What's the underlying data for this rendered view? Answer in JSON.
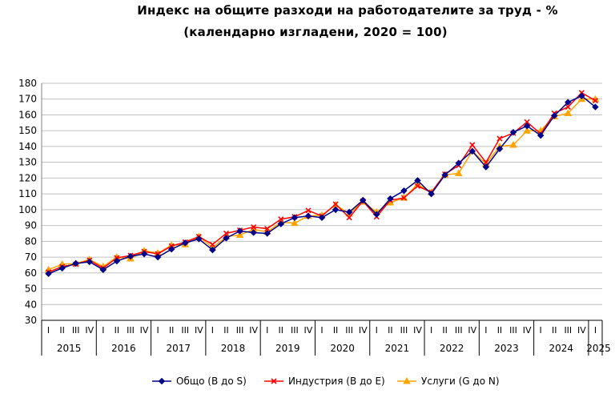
{
  "chart_data": {
    "type": "line",
    "title": "Индекс на общите разходи на работодателите за труд - %",
    "subtitle": "(календарно изгладени, 2020 = 100)",
    "xlabel": "",
    "ylabel": "",
    "ylim": [
      30,
      180
    ],
    "yticks": [
      30,
      40,
      50,
      60,
      70,
      80,
      90,
      100,
      110,
      120,
      130,
      140,
      150,
      160,
      170,
      180
    ],
    "grid": true,
    "legend_position": "bottom",
    "quarter_labels": [
      "I",
      "II",
      "III",
      "IV"
    ],
    "years": [
      "2015",
      "2016",
      "2017",
      "2018",
      "2019",
      "2020",
      "2021",
      "2022",
      "2023",
      "2024",
      "2025"
    ],
    "categories": [
      "2015 I",
      "2015 II",
      "2015 III",
      "2015 IV",
      "2016 I",
      "2016 II",
      "2016 III",
      "2016 IV",
      "2017 I",
      "2017 II",
      "2017 III",
      "2017 IV",
      "2018 I",
      "2018 II",
      "2018 III",
      "2018 IV",
      "2019 I",
      "2019 II",
      "2019 III",
      "2019 IV",
      "2020 I",
      "2020 II",
      "2020 III",
      "2020 IV",
      "2021 I",
      "2021 II",
      "2021 III",
      "2021 IV",
      "2022 I",
      "2022 II",
      "2022 III",
      "2022 IV",
      "2023 I",
      "2023 II",
      "2023 III",
      "2023 IV",
      "2024 I",
      "2024 II",
      "2024 III",
      "2024 IV",
      "2025 I"
    ],
    "series": [
      {
        "name": "Общо (B до S)",
        "color": "#00008B",
        "marker": "diamond",
        "values": [
          59.5,
          63,
          66,
          67,
          62,
          67.5,
          70.5,
          72,
          70,
          75,
          79,
          81.5,
          74.5,
          82,
          86.5,
          85.5,
          85,
          91,
          95,
          96,
          95,
          100,
          98.5,
          106,
          97,
          107,
          112,
          118.5,
          110,
          122,
          129.5,
          137,
          127,
          138.5,
          149,
          153,
          147,
          159.5,
          168,
          172,
          165
        ]
      },
      {
        "name": "Индустрия (B до E)",
        "color": "#FF0000",
        "marker": "x",
        "values": [
          60.5,
          64,
          65.5,
          68,
          63,
          69.5,
          71,
          73.5,
          72,
          77,
          79.5,
          83,
          78,
          85,
          87,
          89,
          88,
          94,
          95.5,
          99.5,
          96,
          103.5,
          95,
          105.5,
          95.5,
          106,
          107.5,
          115,
          111,
          122.5,
          128,
          141,
          130,
          145,
          148.5,
          155.5,
          148,
          161,
          165,
          174,
          169
        ]
      },
      {
        "name": "Услуги (G до N)",
        "color": "#FFA500",
        "marker": "triangle",
        "values": [
          62,
          65.5,
          66,
          68.5,
          64,
          70,
          69,
          74,
          72.5,
          77.5,
          78,
          83,
          76,
          83,
          84,
          87.5,
          86,
          92,
          91.5,
          96,
          96.5,
          103,
          97.5,
          105,
          98.5,
          104.5,
          107.5,
          116,
          111,
          122,
          123,
          137,
          129,
          140,
          141,
          150,
          150,
          159,
          161,
          170,
          170
        ]
      }
    ]
  }
}
